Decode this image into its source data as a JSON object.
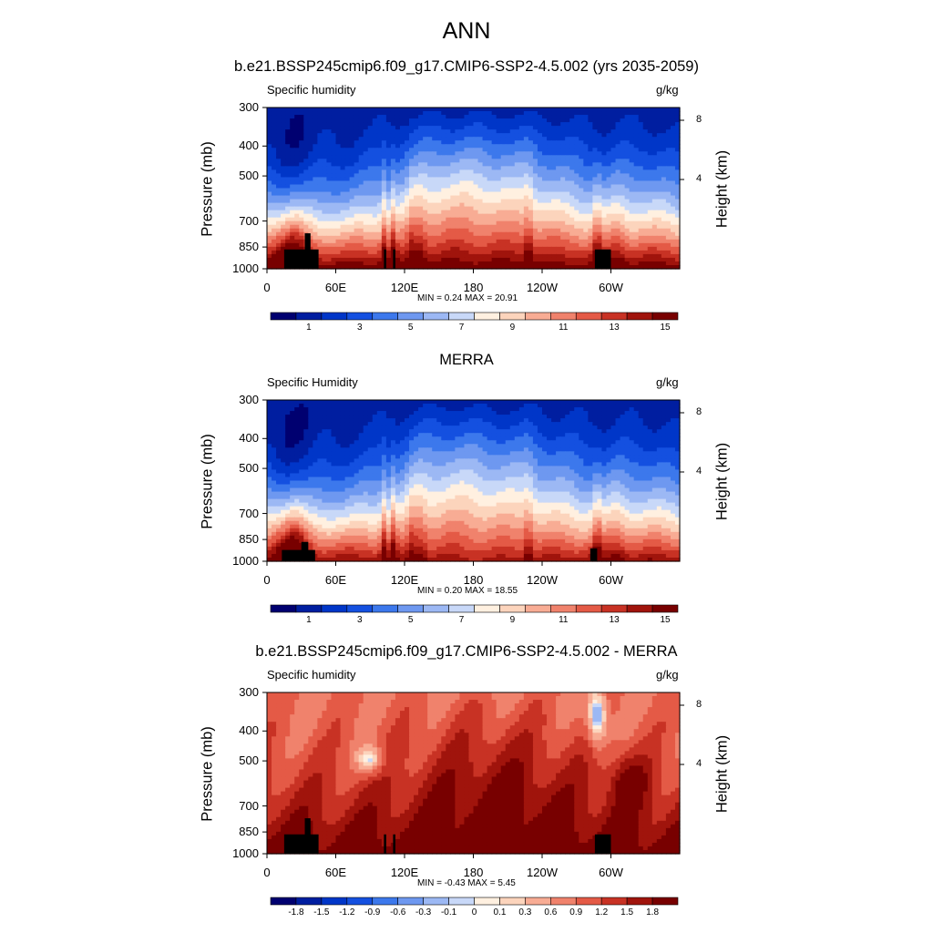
{
  "main_title": "ANN",
  "colors": {
    "abs_palette": [
      "#000070",
      "#001ea0",
      "#0036c8",
      "#1450e0",
      "#3c78ec",
      "#6e98f0",
      "#9cb8f4",
      "#c8d8f8",
      "#fff0e0",
      "#fcd4bc",
      "#f8ac94",
      "#f0826c",
      "#e45a46",
      "#c83224",
      "#a0140c",
      "#780000"
    ],
    "diff_palette": [
      "#000070",
      "#001ea0",
      "#0036c8",
      "#1450e0",
      "#3c78ec",
      "#6e98f0",
      "#9cb8f4",
      "#c8d8f8",
      "#fff0e0",
      "#fcd4bc",
      "#f8ac94",
      "#f0826c",
      "#e45a46",
      "#c83224",
      "#a0140c",
      "#780000"
    ],
    "topography": "#000000"
  },
  "chart_data": [
    {
      "type": "heatmap",
      "title": "b.e21.BSSP245cmip6.f09_g17.CMIP6-SSP2-4.5.002 (yrs 2035-2059)",
      "left_string": "Specific humidity",
      "right_string": "g/kg",
      "xlabel": "",
      "ylabel": "Pressure (mb)",
      "right_ylabel": "Height (km)",
      "x_ticks": [
        "0",
        "60E",
        "120E",
        "180",
        "120W",
        "60W"
      ],
      "y_ticks": [
        "300",
        "400",
        "500",
        "700",
        "850",
        "1000"
      ],
      "right_ticks": [
        "8",
        "4"
      ],
      "xlim": [
        0,
        360
      ],
      "ylim": [
        1000,
        300
      ],
      "y_scale": "log",
      "min_max_text": "MIN =   0.24  MAX =  20.91",
      "min": 0.24,
      "max": 20.91,
      "colorbar_levels": [
        0,
        1,
        2,
        3,
        4,
        5,
        6,
        7,
        8,
        9,
        10,
        11,
        12,
        13,
        14,
        15
      ],
      "colorbar_labels": [
        "1",
        "3",
        "5",
        "7",
        "9",
        "11",
        "13",
        "15"
      ],
      "field": "absolute"
    },
    {
      "type": "heatmap",
      "title": "MERRA",
      "left_string": "Specific Humidity",
      "right_string": "g/kg",
      "xlabel": "",
      "ylabel": "Pressure (mb)",
      "right_ylabel": "Height (km)",
      "x_ticks": [
        "0",
        "60E",
        "120E",
        "180",
        "120W",
        "60W"
      ],
      "y_ticks": [
        "300",
        "400",
        "500",
        "700",
        "850",
        "1000"
      ],
      "right_ticks": [
        "8",
        "4"
      ],
      "xlim": [
        0,
        360
      ],
      "ylim": [
        1000,
        300
      ],
      "y_scale": "log",
      "min_max_text": "MIN =   0.20  MAX =  18.55",
      "min": 0.2,
      "max": 18.55,
      "colorbar_levels": [
        0,
        1,
        2,
        3,
        4,
        5,
        6,
        7,
        8,
        9,
        10,
        11,
        12,
        13,
        14,
        15
      ],
      "colorbar_labels": [
        "1",
        "3",
        "5",
        "7",
        "9",
        "11",
        "13",
        "15"
      ],
      "field": "merra"
    },
    {
      "type": "heatmap",
      "title": "b.e21.BSSP245cmip6.f09_g17.CMIP6-SSP2-4.5.002 - MERRA",
      "left_string": "Specific humidity",
      "right_string": "g/kg",
      "xlabel": "",
      "ylabel": "Pressure (mb)",
      "right_ylabel": "Height (km)",
      "x_ticks": [
        "0",
        "60E",
        "120E",
        "180",
        "120W",
        "60W"
      ],
      "y_ticks": [
        "300",
        "400",
        "500",
        "700",
        "850",
        "1000"
      ],
      "right_ticks": [
        "8",
        "4"
      ],
      "xlim": [
        0,
        360
      ],
      "ylim": [
        1000,
        300
      ],
      "y_scale": "log",
      "min_max_text": "MIN =  -0.43  MAX =   5.45",
      "min": -0.43,
      "max": 5.45,
      "colorbar_levels": [
        -1.8,
        -1.5,
        -1.2,
        -0.9,
        -0.6,
        -0.3,
        -0.1,
        0,
        0.1,
        0.3,
        0.6,
        0.9,
        1.2,
        1.5,
        1.8
      ],
      "colorbar_labels": [
        "-1.8",
        "-1.5",
        "-1.2",
        "-0.9",
        "-0.6",
        "-0.3",
        "-0.1",
        "0",
        "0.1",
        "0.3",
        "0.6",
        "0.9",
        "1.2",
        "1.5",
        "1.8"
      ],
      "field": "difference"
    }
  ]
}
